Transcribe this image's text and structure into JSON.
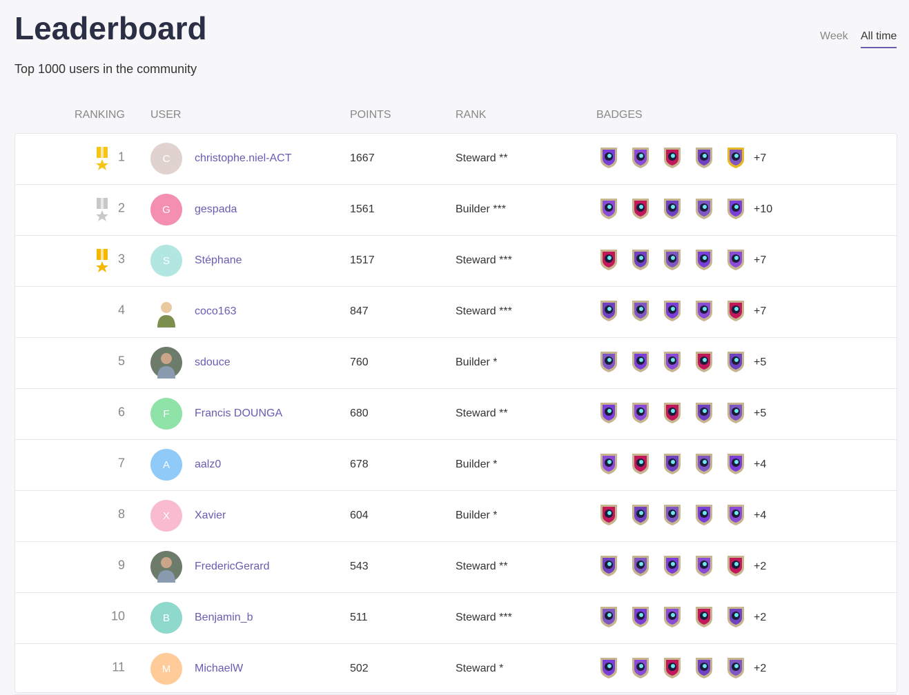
{
  "header": {
    "title": "Leaderboard",
    "subtitle": "Top 1000 users in the community"
  },
  "tabs": [
    "Week",
    "All time"
  ],
  "table": {
    "columns": [
      "RANKING",
      "USER",
      "POINTS",
      "RANK",
      "BADGES"
    ],
    "rows": [
      {
        "ranking": 1,
        "initial": "C",
        "name": "christophe.niel-ACT",
        "points": 1667,
        "rank": "Steward **",
        "more_badges": "+7"
      },
      {
        "ranking": 2,
        "initial": "G",
        "name": "gespada",
        "points": 1561,
        "rank": "Builder ***",
        "more_badges": "+10"
      },
      {
        "ranking": 3,
        "initial": "S",
        "name": "Stéphane",
        "points": 1517,
        "rank": "Steward ***",
        "more_badges": "+7"
      },
      {
        "ranking": 4,
        "name": "coco163",
        "points": 847,
        "rank": "Steward ***",
        "more_badges": "+7"
      },
      {
        "ranking": 5,
        "name": "sdouce",
        "points": 760,
        "rank": "Builder *",
        "more_badges": "+5"
      },
      {
        "ranking": 6,
        "initial": "F",
        "name": "Francis DOUNGA",
        "points": 680,
        "rank": "Steward **",
        "more_badges": "+5"
      },
      {
        "ranking": 7,
        "initial": "A",
        "name": "aalz0",
        "points": 678,
        "rank": "Builder *",
        "more_badges": "+4"
      },
      {
        "ranking": 8,
        "initial": "X",
        "name": "Xavier",
        "points": 604,
        "rank": "Builder *",
        "more_badges": "+4"
      },
      {
        "ranking": 9,
        "name": "FredericGerard",
        "points": 543,
        "rank": "Steward **",
        "more_badges": "+2"
      },
      {
        "ranking": 10,
        "initial": "B",
        "name": "Benjamin_b",
        "points": 511,
        "rank": "Steward ***",
        "more_badges": "+2"
      },
      {
        "ranking": 11,
        "initial": "M",
        "name": "MichaelW",
        "points": 502,
        "rank": "Steward *",
        "more_badges": "+2"
      }
    ]
  }
}
